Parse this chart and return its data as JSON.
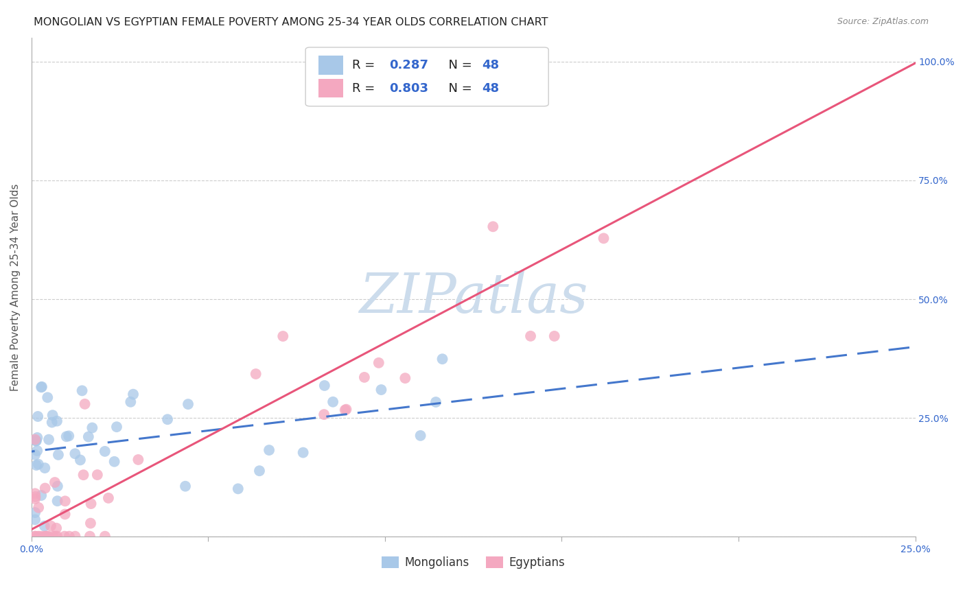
{
  "title": "MONGOLIAN VS EGYPTIAN FEMALE POVERTY AMONG 25-34 YEAR OLDS CORRELATION CHART",
  "source": "Source: ZipAtlas.com",
  "ylabel": "Female Poverty Among 25-34 Year Olds",
  "xlim": [
    0.0,
    0.25
  ],
  "ylim": [
    0.0,
    1.05
  ],
  "x_tick_pos": [
    0.0,
    0.05,
    0.1,
    0.15,
    0.2,
    0.25
  ],
  "x_tick_labels": [
    "0.0%",
    "",
    "",
    "",
    "",
    "25.0%"
  ],
  "y_tick_pos": [
    0.0,
    0.25,
    0.5,
    0.75,
    1.0
  ],
  "y_tick_labels": [
    "",
    "25.0%",
    "50.0%",
    "75.0%",
    "100.0%"
  ],
  "mongolian_color": "#a8c8e8",
  "egyptian_color": "#f4a8c0",
  "mongolian_line_color": "#4477cc",
  "egyptian_line_color": "#e8557a",
  "r_mongolian": "0.287",
  "n_mongolian": "48",
  "r_egyptian": "0.803",
  "n_egyptian": "48",
  "background_color": "#ffffff",
  "grid_color": "#cccccc",
  "watermark_text": "ZIPatlas",
  "watermark_color": "#ccdcec",
  "title_fontsize": 11.5,
  "label_fontsize": 11,
  "tick_fontsize": 10,
  "legend_fontsize": 13,
  "tick_color": "#3366cc",
  "label_color": "#555555"
}
